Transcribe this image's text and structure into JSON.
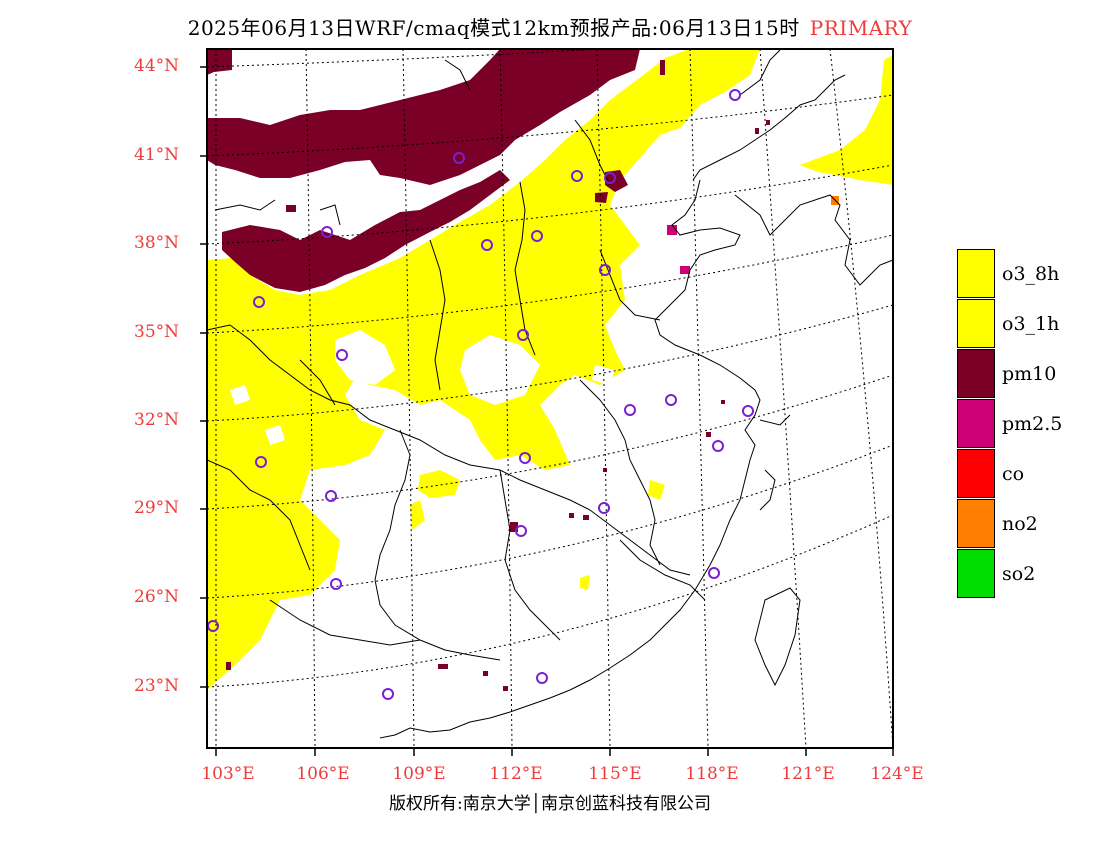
{
  "title": {
    "main": "2025年06月13日WRF/cmaq模式12km预报产品:06月13日15时",
    "tag": "PRIMARY"
  },
  "latitude_labels": [
    "44°N",
    "41°N",
    "38°N",
    "35°N",
    "32°N",
    "29°N",
    "26°N",
    "23°N"
  ],
  "longitude_labels": [
    "103°E",
    "106°E",
    "109°E",
    "112°E",
    "115°E",
    "118°E",
    "121°E",
    "124°E"
  ],
  "legend": [
    {
      "label": "o3_8h",
      "color": "#ffff00"
    },
    {
      "label": "o3_1h",
      "color": "#ffff00"
    },
    {
      "label": "pm10",
      "color": "#7a0028"
    },
    {
      "label": "pm2.5",
      "color": "#cc0077"
    },
    {
      "label": "co",
      "color": "#ff0000"
    },
    {
      "label": "no2",
      "color": "#ff7f00"
    },
    {
      "label": "so2",
      "color": "#00dd00"
    }
  ],
  "copyright": "版权所有:南京大学│南京创蓝科技有限公司",
  "colors": {
    "axis_label": "#ef3b3b",
    "station_marker": "#7a1fd1",
    "boundary": "#000000"
  }
}
